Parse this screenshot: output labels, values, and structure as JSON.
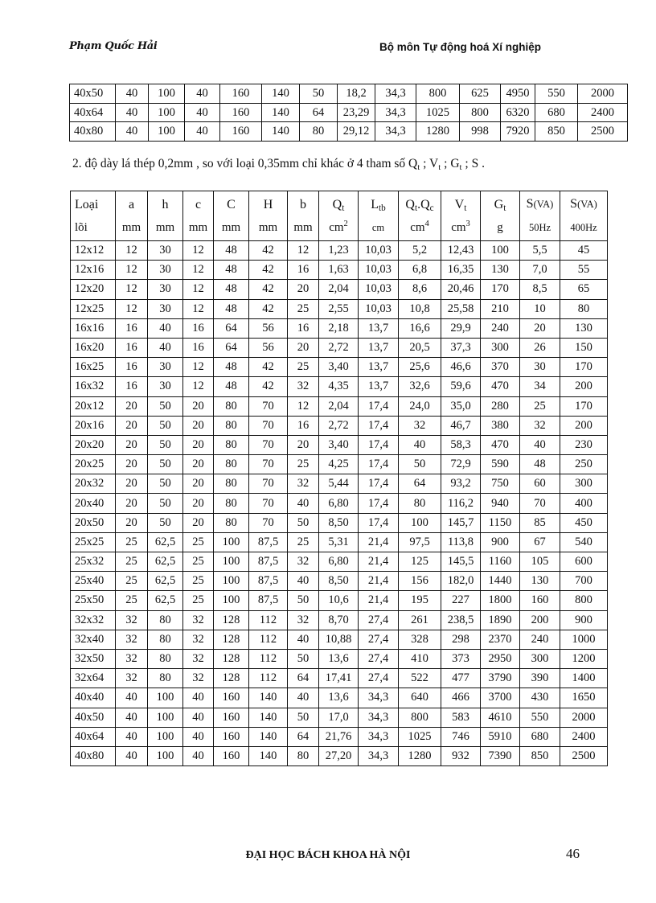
{
  "header": {
    "author": "Phạm Quốc Hải",
    "department": "Bộ môn Tự động hoá Xí nghiệp"
  },
  "top_table": {
    "rows": [
      [
        "40x50",
        "40",
        "100",
        "40",
        "160",
        "140",
        "50",
        "18,2",
        "34,3",
        "800",
        "625",
        "4950",
        "550",
        "2000"
      ],
      [
        "40x64",
        "40",
        "100",
        "40",
        "160",
        "140",
        "64",
        "23,29",
        "34,3",
        "1025",
        "800",
        "6320",
        "680",
        "2400"
      ],
      [
        "40x80",
        "40",
        "100",
        "40",
        "160",
        "140",
        "80",
        "29,12",
        "34,3",
        "1280",
        "998",
        "7920",
        "850",
        "2500"
      ]
    ]
  },
  "paragraph": {
    "segments": [
      {
        "t": "2. độ dày  lá thép 0,2mm , so với loại 0,35mm chỉ khác ở 4 tham số Q"
      },
      {
        "sub": "t"
      },
      {
        "t": " ; V"
      },
      {
        "sub": "t"
      },
      {
        "t": " ; G"
      },
      {
        "sub": "t"
      },
      {
        "t": " ; S ."
      }
    ]
  },
  "main_table": {
    "headers": [
      {
        "line1": [
          {
            "t": "Loại"
          }
        ],
        "line2": [
          {
            "t": "lõi"
          }
        ]
      },
      {
        "line1": [
          {
            "t": "a"
          }
        ],
        "line2": [
          {
            "t": "mm"
          }
        ]
      },
      {
        "line1": [
          {
            "t": "h"
          }
        ],
        "line2": [
          {
            "t": "mm"
          }
        ]
      },
      {
        "line1": [
          {
            "t": "c"
          }
        ],
        "line2": [
          {
            "t": "mm"
          }
        ]
      },
      {
        "line1": [
          {
            "t": "C"
          }
        ],
        "line2": [
          {
            "t": "mm"
          }
        ]
      },
      {
        "line1": [
          {
            "t": "H"
          }
        ],
        "line2": [
          {
            "t": "mm"
          }
        ]
      },
      {
        "line1": [
          {
            "t": "b"
          }
        ],
        "line2": [
          {
            "t": "mm"
          }
        ]
      },
      {
        "line1": [
          {
            "t": "Q"
          },
          {
            "sub": "t"
          }
        ],
        "line2": [
          {
            "t": "cm"
          },
          {
            "sup": "2"
          }
        ]
      },
      {
        "line1": [
          {
            "t": "L"
          },
          {
            "sub": "tb"
          }
        ],
        "line2": [
          {
            "small": "cm"
          }
        ]
      },
      {
        "line1": [
          {
            "t": "Q"
          },
          {
            "sub": "t"
          },
          {
            "t": ".Q"
          },
          {
            "sub": "c"
          }
        ],
        "line2": [
          {
            "t": "cm"
          },
          {
            "sup": "4"
          }
        ]
      },
      {
        "line1": [
          {
            "t": "V"
          },
          {
            "sub": "t"
          }
        ],
        "line2": [
          {
            "t": "cm"
          },
          {
            "sup": "3"
          }
        ]
      },
      {
        "line1": [
          {
            "t": "G"
          },
          {
            "sub": "t"
          }
        ],
        "line2": [
          {
            "t": "g"
          }
        ]
      },
      {
        "line1": [
          {
            "t": "S"
          },
          {
            "small": "(VA)"
          }
        ],
        "line2": [
          {
            "small": "50Hz"
          }
        ]
      },
      {
        "line1": [
          {
            "t": "S"
          },
          {
            "small": "(VA)"
          }
        ],
        "line2": [
          {
            "small": "400Hz"
          }
        ]
      }
    ],
    "rows": [
      [
        "12x12",
        "12",
        "30",
        "12",
        "48",
        "42",
        "12",
        "1,23",
        "10,03",
        "5,2",
        "12,43",
        "100",
        "5,5",
        "45"
      ],
      [
        "12x16",
        "12",
        "30",
        "12",
        "48",
        "42",
        "16",
        "1,63",
        "10,03",
        "6,8",
        "16,35",
        "130",
        "7,0",
        "55"
      ],
      [
        "12x20",
        "12",
        "30",
        "12",
        "48",
        "42",
        "20",
        "2,04",
        "10,03",
        "8,6",
        "20,46",
        "170",
        "8,5",
        "65"
      ],
      [
        "12x25",
        "12",
        "30",
        "12",
        "48",
        "42",
        "25",
        "2,55",
        "10,03",
        "10,8",
        "25,58",
        "210",
        "10",
        "80"
      ],
      [
        "16x16",
        "16",
        "40",
        "16",
        "64",
        "56",
        "16",
        "2,18",
        "13,7",
        "16,6",
        "29,9",
        "240",
        "20",
        "130"
      ],
      [
        "16x20",
        "16",
        "40",
        "16",
        "64",
        "56",
        "20",
        "2,72",
        "13,7",
        "20,5",
        "37,3",
        "300",
        "26",
        "150"
      ],
      [
        "16x25",
        "16",
        "30",
        "12",
        "48",
        "42",
        "25",
        "3,40",
        "13,7",
        "25,6",
        "46,6",
        "370",
        "30",
        "170"
      ],
      [
        "16x32",
        "16",
        "30",
        "12",
        "48",
        "42",
        "32",
        "4,35",
        "13,7",
        "32,6",
        "59,6",
        "470",
        "34",
        "200"
      ],
      [
        "20x12",
        "20",
        "50",
        "20",
        "80",
        "70",
        "12",
        "2,04",
        "17,4",
        "24,0",
        "35,0",
        "280",
        "25",
        "170"
      ],
      [
        "20x16",
        "20",
        "50",
        "20",
        "80",
        "70",
        "16",
        "2,72",
        "17,4",
        "32",
        "46,7",
        "380",
        "32",
        "200"
      ],
      [
        "20x20",
        "20",
        "50",
        "20",
        "80",
        "70",
        "20",
        "3,40",
        "17,4",
        "40",
        "58,3",
        "470",
        "40",
        "230"
      ],
      [
        "20x25",
        "20",
        "50",
        "20",
        "80",
        "70",
        "25",
        "4,25",
        "17,4",
        "50",
        "72,9",
        "590",
        "48",
        "250"
      ],
      [
        "20x32",
        "20",
        "50",
        "20",
        "80",
        "70",
        "32",
        "5,44",
        "17,4",
        "64",
        "93,2",
        "750",
        "60",
        "300"
      ],
      [
        "20x40",
        "20",
        "50",
        "20",
        "80",
        "70",
        "40",
        "6,80",
        "17,4",
        "80",
        "116,2",
        "940",
        "70",
        "400"
      ],
      [
        "20x50",
        "20",
        "50",
        "20",
        "80",
        "70",
        "50",
        "8,50",
        "17,4",
        "100",
        "145,7",
        "1150",
        "85",
        "450"
      ],
      [
        "25x25",
        "25",
        "62,5",
        "25",
        "100",
        "87,5",
        "25",
        "5,31",
        "21,4",
        "97,5",
        "113,8",
        "900",
        "67",
        "540"
      ],
      [
        "25x32",
        "25",
        "62,5",
        "25",
        "100",
        "87,5",
        "32",
        "6,80",
        "21,4",
        "125",
        "145,5",
        "1160",
        "105",
        "600"
      ],
      [
        "25x40",
        "25",
        "62,5",
        "25",
        "100",
        "87,5",
        "40",
        "8,50",
        "21,4",
        "156",
        "182,0",
        "1440",
        "130",
        "700"
      ],
      [
        "25x50",
        "25",
        "62,5",
        "25",
        "100",
        "87,5",
        "50",
        "10,6",
        "21,4",
        "195",
        "227",
        "1800",
        "160",
        "800"
      ],
      [
        "32x32",
        "32",
        "80",
        "32",
        "128",
        "112",
        "32",
        "8,70",
        "27,4",
        "261",
        "238,5",
        "1890",
        "200",
        "900"
      ],
      [
        "32x40",
        "32",
        "80",
        "32",
        "128",
        "112",
        "40",
        "10,88",
        "27,4",
        "328",
        "298",
        "2370",
        "240",
        "1000"
      ],
      [
        "32x50",
        "32",
        "80",
        "32",
        "128",
        "112",
        "50",
        "13,6",
        "27,4",
        "410",
        "373",
        "2950",
        "300",
        "1200"
      ],
      [
        "32x64",
        "32",
        "80",
        "32",
        "128",
        "112",
        "64",
        "17,41",
        "27,4",
        "522",
        "477",
        "3790",
        "390",
        "1400"
      ],
      [
        "40x40",
        "40",
        "100",
        "40",
        "160",
        "140",
        "40",
        "13,6",
        "34,3",
        "640",
        "466",
        "3700",
        "430",
        "1650"
      ],
      [
        "40x50",
        "40",
        "100",
        "40",
        "160",
        "140",
        "50",
        "17,0",
        "34,3",
        "800",
        "583",
        "4610",
        "550",
        "2000"
      ],
      [
        "40x64",
        "40",
        "100",
        "40",
        "160",
        "140",
        "64",
        "21,76",
        "34,3",
        "1025",
        "746",
        "5910",
        "680",
        "2400"
      ],
      [
        "40x80",
        "40",
        "100",
        "40",
        "160",
        "140",
        "80",
        "27,20",
        "34,3",
        "1280",
        "932",
        "7390",
        "850",
        "2500"
      ]
    ]
  },
  "footer": {
    "institution": "ĐẠI HỌC BÁCH KHOA HÀ NỘI",
    "page_number": "46"
  }
}
